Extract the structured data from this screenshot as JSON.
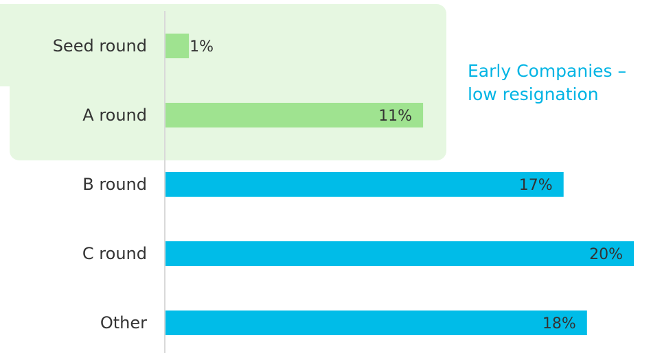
{
  "chart_data": {
    "type": "bar",
    "orientation": "horizontal",
    "categories": [
      "Seed round",
      "A round",
      "B round",
      "C round",
      "Other"
    ],
    "values": [
      1,
      11,
      17,
      20,
      18
    ],
    "value_labels": [
      "1%",
      "11%",
      "17%",
      "20%",
      "18%"
    ],
    "xlim": [
      0,
      20
    ],
    "grid": false,
    "highlight": {
      "categories": [
        "Seed round",
        "A round"
      ],
      "annotation": [
        "Early Companies –",
        "low resignation"
      ]
    },
    "colors": {
      "highlight_bar": "#9FE390",
      "default_bar": "#00BCE8",
      "highlight_band": "#E6F7E1",
      "annotation_text": "#00B4E4",
      "axis_line": "#D9D9D9",
      "text": "#333333"
    }
  }
}
